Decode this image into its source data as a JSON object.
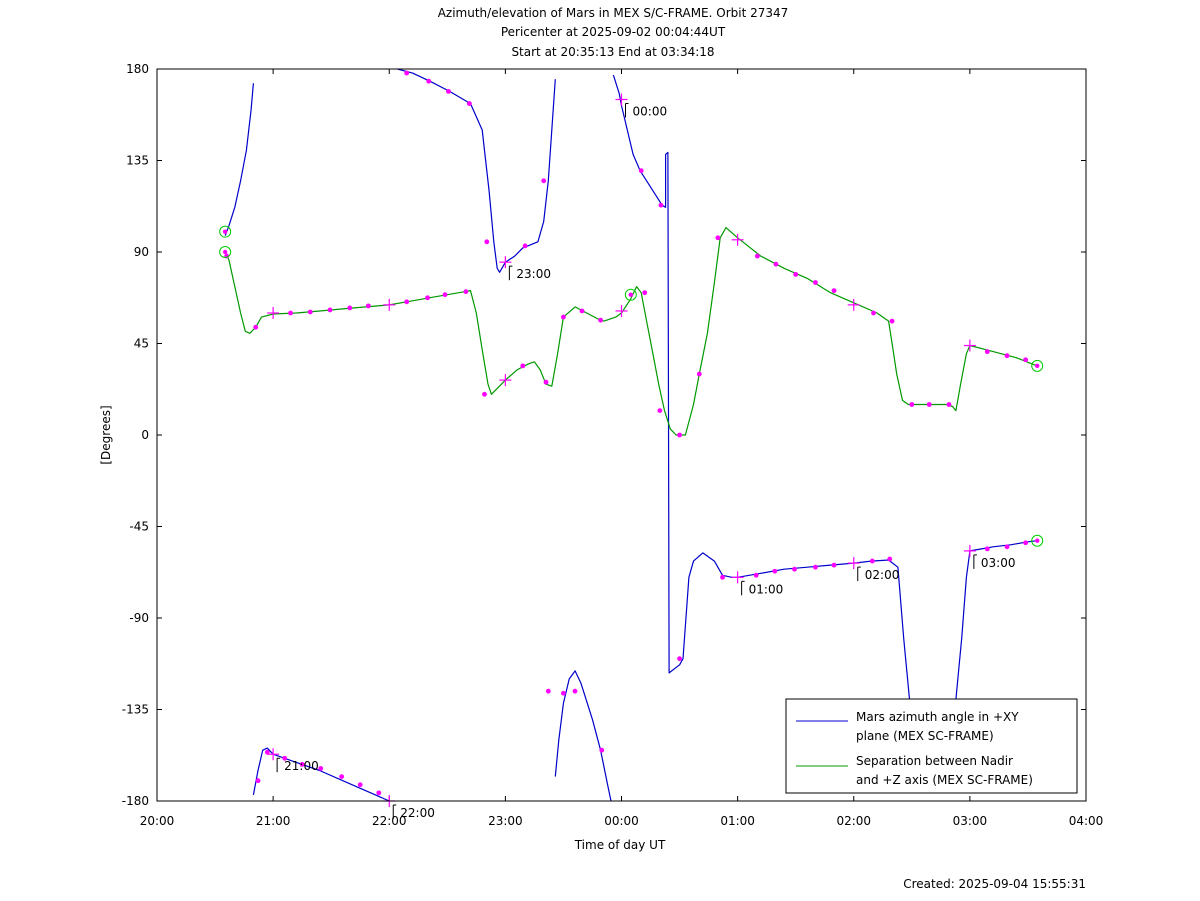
{
  "chart_data": {
    "type": "line",
    "title_lines": [
      "Azimuth/elevation of Mars in MEX S/C-FRAME.  Orbit 27347",
      "Pericenter at 2025-09-02 00:04:44UT",
      "Start at 20:35:13 End at 03:34:18"
    ],
    "xlabel": "Time of day UT",
    "ylabel": "[Degrees]",
    "x_unit": "hours",
    "xlim": [
      20,
      28
    ],
    "ylim": [
      -180,
      180
    ],
    "x_ticks": [
      {
        "v": 20,
        "label": "20:00"
      },
      {
        "v": 21,
        "label": "21:00"
      },
      {
        "v": 22,
        "label": "22:00"
      },
      {
        "v": 23,
        "label": "23:00"
      },
      {
        "v": 24,
        "label": "00:00"
      },
      {
        "v": 25,
        "label": "01:00"
      },
      {
        "v": 26,
        "label": "02:00"
      },
      {
        "v": 27,
        "label": "03:00"
      },
      {
        "v": 28,
        "label": "04:00"
      }
    ],
    "y_ticks": [
      {
        "v": 180,
        "label": "180"
      },
      {
        "v": 135,
        "label": "135"
      },
      {
        "v": 90,
        "label": "90"
      },
      {
        "v": 45,
        "label": "45"
      },
      {
        "v": 0,
        "label": "0"
      },
      {
        "v": -45,
        "label": "-45"
      },
      {
        "v": -90,
        "label": "-90"
      },
      {
        "v": -135,
        "label": "-135"
      },
      {
        "v": -180,
        "label": "-180"
      }
    ],
    "legend_position": "bottom-right",
    "series": [
      {
        "name": "Mars azimuth angle in +XY plane (MEX SC-FRAME)",
        "legend_lines": [
          "Mars azimuth angle in +XY",
          "plane (MEX SC-FRAME)"
        ],
        "color": "#0000cc",
        "segments": [
          [
            [
              20.587,
              98
            ],
            [
              20.62,
              103
            ],
            [
              20.67,
              112
            ],
            [
              20.72,
              125
            ],
            [
              20.77,
              140
            ],
            [
              20.81,
              160
            ],
            [
              20.83,
              173
            ]
          ],
          [
            [
              20.83,
              -177
            ],
            [
              20.87,
              -165
            ],
            [
              20.91,
              -155
            ],
            [
              20.95,
              -154
            ],
            [
              21.0,
              -157
            ],
            [
              21.2,
              -161
            ],
            [
              21.4,
              -165
            ],
            [
              21.6,
              -170
            ],
            [
              21.8,
              -175
            ],
            [
              22.0,
              -180
            ],
            [
              22.07,
              -182
            ]
          ],
          [
            [
              22.07,
              180
            ],
            [
              22.2,
              178
            ],
            [
              22.35,
              174
            ],
            [
              22.52,
              169
            ],
            [
              22.7,
              163
            ],
            [
              22.8,
              150
            ],
            [
              22.86,
              120
            ],
            [
              22.9,
              95
            ],
            [
              22.93,
              82
            ],
            [
              22.95,
              80
            ],
            [
              23.0,
              85
            ],
            [
              23.08,
              88
            ],
            [
              23.15,
              92
            ],
            [
              23.28,
              95
            ],
            [
              23.33,
              105
            ],
            [
              23.37,
              125
            ],
            [
              23.4,
              150
            ],
            [
              23.43,
              175
            ]
          ],
          [
            [
              23.43,
              -168
            ],
            [
              23.46,
              -150
            ],
            [
              23.5,
              -132
            ],
            [
              23.55,
              -120
            ],
            [
              23.6,
              -116
            ],
            [
              23.65,
              -122
            ],
            [
              23.75,
              -140
            ],
            [
              23.82,
              -155
            ],
            [
              23.88,
              -172
            ],
            [
              23.91,
              -180
            ]
          ],
          [
            [
              23.93,
              177
            ],
            [
              23.98,
              168
            ],
            [
              24.0,
              162
            ],
            [
              24.05,
              150
            ],
            [
              24.1,
              138
            ],
            [
              24.16,
              130
            ],
            [
              24.25,
              122
            ],
            [
              24.35,
              113
            ],
            [
              24.38,
              112
            ],
            [
              24.38,
              138
            ],
            [
              24.4,
              139
            ],
            [
              24.41,
              -117
            ],
            [
              24.5,
              -113
            ],
            [
              24.53,
              -110
            ],
            [
              24.58,
              -70
            ],
            [
              24.62,
              -62
            ],
            [
              24.7,
              -58
            ],
            [
              24.8,
              -62
            ],
            [
              24.87,
              -69
            ],
            [
              24.95,
              -70
            ],
            [
              25.0,
              -70
            ],
            [
              25.2,
              -68
            ],
            [
              25.4,
              -66
            ],
            [
              25.6,
              -65
            ],
            [
              25.8,
              -64
            ],
            [
              26.0,
              -63
            ],
            [
              26.15,
              -62
            ],
            [
              26.3,
              -61.5
            ],
            [
              26.38,
              -65
            ],
            [
              26.43,
              -100
            ],
            [
              26.48,
              -130
            ]
          ],
          [
            [
              26.88,
              -130
            ],
            [
              26.93,
              -100
            ],
            [
              26.97,
              -70
            ],
            [
              27.0,
              -57
            ],
            [
              27.1,
              -56
            ],
            [
              27.2,
              -55
            ],
            [
              27.35,
              -54
            ],
            [
              27.5,
              -52.5
            ],
            [
              27.58,
              -52
            ]
          ]
        ],
        "dots": [
          [
            20.87,
            -170
          ],
          [
            20.95,
            -156
          ],
          [
            21.1,
            -159
          ],
          [
            21.25,
            -162
          ],
          [
            21.41,
            -164
          ],
          [
            21.59,
            -168
          ],
          [
            21.75,
            -172
          ],
          [
            21.91,
            -176
          ],
          [
            22.15,
            178
          ],
          [
            22.34,
            174
          ],
          [
            22.51,
            169
          ],
          [
            22.69,
            163
          ],
          [
            22.84,
            95
          ],
          [
            23.17,
            93
          ],
          [
            23.33,
            125
          ],
          [
            23.37,
            -126
          ],
          [
            23.5,
            -127
          ],
          [
            23.6,
            -126
          ],
          [
            23.83,
            -155
          ],
          [
            24.17,
            130
          ],
          [
            24.34,
            113
          ],
          [
            24.5,
            -110
          ],
          [
            24.87,
            -70
          ],
          [
            25.16,
            -69
          ],
          [
            25.32,
            -67
          ],
          [
            25.49,
            -66
          ],
          [
            25.67,
            -65
          ],
          [
            25.83,
            -64
          ],
          [
            26.16,
            -62
          ],
          [
            26.31,
            -61
          ],
          [
            27.15,
            -56
          ],
          [
            27.32,
            -55
          ],
          [
            27.48,
            -53
          ]
        ],
        "crosses": [
          [
            21.0,
            -157
          ],
          [
            22.0,
            -180
          ],
          [
            23.0,
            85
          ],
          [
            24.0,
            165
          ],
          [
            25.0,
            -70
          ],
          [
            26.0,
            -63
          ],
          [
            27.0,
            -57
          ]
        ],
        "circles": [
          [
            20.587,
            100
          ],
          [
            27.58,
            -52
          ]
        ]
      },
      {
        "name": "Separation between Nadir and +Z axis (MEX SC-FRAME)",
        "legend_lines": [
          "Separation between Nadir",
          "and +Z axis (MEX SC-FRAME)"
        ],
        "color": "#009900",
        "segments": [
          [
            [
              20.587,
              90
            ],
            [
              20.62,
              86
            ],
            [
              20.67,
              73
            ],
            [
              20.72,
              60
            ],
            [
              20.76,
              51
            ],
            [
              20.8,
              50
            ],
            [
              20.85,
              53
            ],
            [
              20.9,
              58
            ],
            [
              21.0,
              59.5
            ],
            [
              21.2,
              60
            ],
            [
              21.4,
              61
            ],
            [
              21.6,
              62
            ],
            [
              21.8,
              63
            ],
            [
              22.0,
              64
            ],
            [
              22.2,
              66
            ],
            [
              22.4,
              68
            ],
            [
              22.6,
              70
            ],
            [
              22.7,
              71
            ],
            [
              22.75,
              60
            ],
            [
              22.8,
              42
            ],
            [
              22.85,
              25
            ],
            [
              22.88,
              20
            ],
            [
              23.0,
              27
            ],
            [
              23.1,
              32
            ],
            [
              23.2,
              35
            ],
            [
              23.25,
              36
            ],
            [
              23.3,
              32
            ],
            [
              23.35,
              25
            ],
            [
              23.4,
              24
            ],
            [
              23.45,
              40
            ],
            [
              23.5,
              58
            ],
            [
              23.6,
              63
            ],
            [
              23.7,
              60
            ],
            [
              23.8,
              57
            ],
            [
              23.85,
              56
            ],
            [
              23.95,
              58
            ],
            [
              24.0,
              60
            ],
            [
              24.08,
              67
            ],
            [
              24.13,
              73
            ],
            [
              24.17,
              70
            ],
            [
              24.22,
              55
            ],
            [
              24.27,
              40
            ],
            [
              24.32,
              25
            ],
            [
              24.37,
              12
            ],
            [
              24.42,
              3
            ],
            [
              24.47,
              0
            ],
            [
              24.55,
              0
            ],
            [
              24.62,
              15
            ],
            [
              24.67,
              30
            ],
            [
              24.74,
              50
            ],
            [
              24.8,
              75
            ],
            [
              24.85,
              97
            ],
            [
              24.9,
              102
            ],
            [
              25.0,
              97
            ],
            [
              25.2,
              88
            ],
            [
              25.4,
              82
            ],
            [
              25.6,
              77
            ],
            [
              25.8,
              70
            ],
            [
              26.0,
              65
            ],
            [
              26.2,
              60
            ],
            [
              26.3,
              56
            ],
            [
              26.33,
              45
            ],
            [
              26.37,
              30
            ],
            [
              26.42,
              17
            ],
            [
              26.47,
              15
            ],
            [
              26.6,
              15
            ],
            [
              26.8,
              15
            ],
            [
              26.85,
              14
            ],
            [
              26.88,
              12
            ],
            [
              26.92,
              25
            ],
            [
              26.97,
              40
            ],
            [
              27.0,
              44
            ],
            [
              27.2,
              41
            ],
            [
              27.4,
              38
            ],
            [
              27.58,
              34
            ]
          ]
        ],
        "dots": [
          [
            20.6,
            88
          ],
          [
            20.85,
            53
          ],
          [
            21.15,
            60
          ],
          [
            21.32,
            60.5
          ],
          [
            21.49,
            61.5
          ],
          [
            21.66,
            62.5
          ],
          [
            21.82,
            63.5
          ],
          [
            22.15,
            65.5
          ],
          [
            22.33,
            67.5
          ],
          [
            22.48,
            69
          ],
          [
            22.66,
            70.5
          ],
          [
            22.82,
            20
          ],
          [
            23.15,
            34
          ],
          [
            23.35,
            26
          ],
          [
            23.5,
            58
          ],
          [
            23.66,
            61
          ],
          [
            23.82,
            56.5
          ],
          [
            24.2,
            70
          ],
          [
            24.33,
            12
          ],
          [
            24.5,
            0
          ],
          [
            24.67,
            30
          ],
          [
            24.83,
            97
          ],
          [
            25.17,
            88
          ],
          [
            25.33,
            84
          ],
          [
            25.5,
            79
          ],
          [
            25.67,
            75
          ],
          [
            25.83,
            71
          ],
          [
            26.17,
            60
          ],
          [
            26.33,
            56
          ],
          [
            26.5,
            15
          ],
          [
            26.65,
            15
          ],
          [
            26.82,
            15
          ],
          [
            27.15,
            41
          ],
          [
            27.32,
            39
          ],
          [
            27.48,
            37
          ]
        ],
        "crosses": [
          [
            21.0,
            60
          ],
          [
            22.0,
            64
          ],
          [
            23.0,
            27
          ],
          [
            24.0,
            61
          ],
          [
            25.0,
            96
          ],
          [
            26.0,
            64
          ],
          [
            27.0,
            44
          ]
        ],
        "circles": [
          [
            20.587,
            90
          ],
          [
            24.08,
            69
          ],
          [
            27.58,
            34
          ]
        ]
      }
    ],
    "annotations": [
      {
        "x": 21.0,
        "y": -157,
        "label": "21:00"
      },
      {
        "x": 22.0,
        "y": -180,
        "label": "22:00"
      },
      {
        "x": 23.0,
        "y": 85,
        "label": "23:00"
      },
      {
        "x": 24.0,
        "y": 165,
        "label": "00:00"
      },
      {
        "x": 25.0,
        "y": -70,
        "label": "01:00"
      },
      {
        "x": 26.0,
        "y": -63,
        "label": "02:00"
      },
      {
        "x": 27.0,
        "y": -57,
        "label": "03:00"
      }
    ],
    "marker_color": "#ff00ff",
    "circle_color": "#00cc00"
  },
  "footer": {
    "created": "Created: 2025-09-04 15:55:31"
  }
}
